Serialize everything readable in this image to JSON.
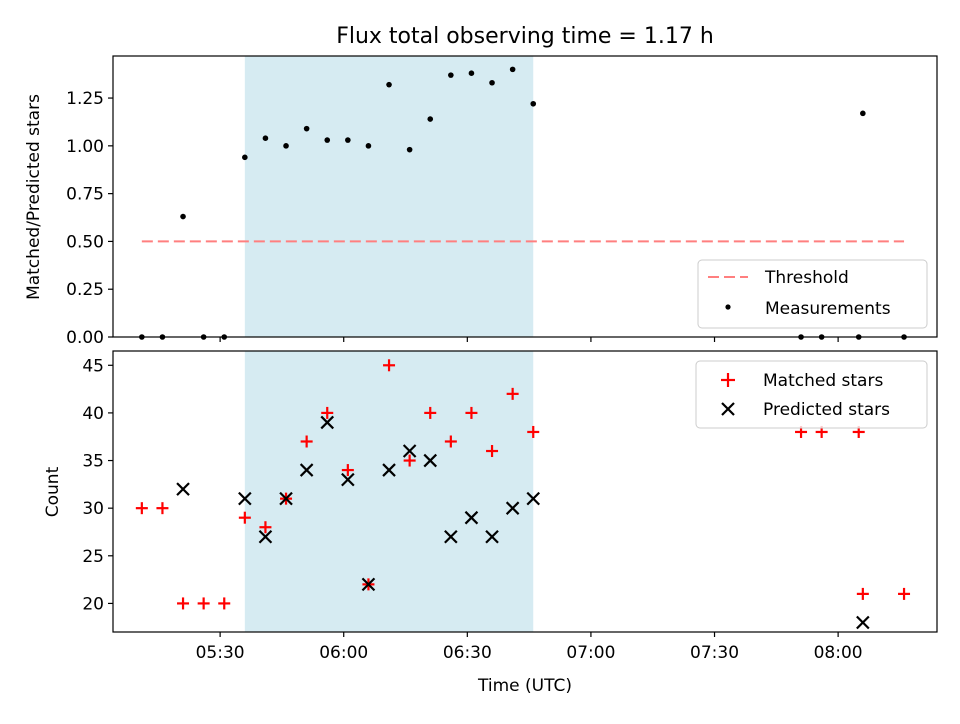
{
  "title": "Flux total observing time = 1.17 h",
  "chart_data": [
    {
      "type": "scatter",
      "ylabel": "Matched/Predicted stars",
      "xlabel": "",
      "xlim": [
        "05:04",
        "08:24"
      ],
      "ylim": [
        0,
        1.47
      ],
      "yticks": [
        0.0,
        0.25,
        0.5,
        0.75,
        1.0,
        1.25
      ],
      "ytick_labels": [
        "0.00",
        "0.25",
        "0.50",
        "0.75",
        "1.00",
        "1.25"
      ],
      "shaded_interval": [
        "05:36",
        "06:46"
      ],
      "threshold": {
        "name": "Threshold",
        "value": 0.5,
        "x_range": [
          "05:11",
          "08:16"
        ],
        "color": "#ff7f7f"
      },
      "legend": {
        "position": "lower right",
        "entries": [
          "Threshold",
          "Measurements"
        ]
      },
      "series": [
        {
          "name": "Measurements",
          "color": "#000000",
          "x": [
            "05:11",
            "05:16",
            "05:21",
            "05:26",
            "05:31",
            "05:36",
            "05:41",
            "05:46",
            "05:51",
            "05:56",
            "06:01",
            "06:06",
            "06:11",
            "06:16",
            "06:21",
            "06:26",
            "06:31",
            "06:36",
            "06:41",
            "06:46",
            "07:51",
            "07:56",
            "08:05",
            "08:06",
            "08:16"
          ],
          "y": [
            0.0,
            0.0,
            0.63,
            0.0,
            0.0,
            0.94,
            1.04,
            1.0,
            1.09,
            1.03,
            1.03,
            1.0,
            1.32,
            0.98,
            1.14,
            1.37,
            1.38,
            1.33,
            1.4,
            1.22,
            0.0,
            0.0,
            0.0,
            1.17,
            0.0
          ]
        }
      ]
    },
    {
      "type": "scatter",
      "xlabel": "Time (UTC)",
      "ylabel": "Count",
      "xlim": [
        "05:04",
        "08:24"
      ],
      "ylim": [
        17,
        46.5
      ],
      "yticks": [
        20,
        25,
        30,
        35,
        40,
        45
      ],
      "xticks": [
        "05:30",
        "06:00",
        "06:30",
        "07:00",
        "07:30",
        "08:00"
      ],
      "shaded_interval": [
        "05:36",
        "06:46"
      ],
      "legend": {
        "position": "upper right",
        "entries": [
          "Matched stars",
          "Predicted stars"
        ]
      },
      "series": [
        {
          "name": "Matched stars",
          "marker": "+",
          "color": "#ff0000",
          "x": [
            "05:11",
            "05:16",
            "05:21",
            "05:26",
            "05:31",
            "05:36",
            "05:41",
            "05:46",
            "05:51",
            "05:56",
            "06:01",
            "06:06",
            "06:11",
            "06:16",
            "06:21",
            "06:26",
            "06:31",
            "06:36",
            "06:41",
            "06:46",
            "07:51",
            "07:56",
            "08:05",
            "08:06",
            "08:16"
          ],
          "y": [
            30,
            30,
            20,
            20,
            20,
            29,
            28,
            31,
            37,
            40,
            34,
            22,
            45,
            35,
            40,
            37,
            40,
            36,
            42,
            38,
            38,
            38,
            38,
            21,
            21
          ]
        },
        {
          "name": "Predicted stars",
          "marker": "x",
          "color": "#000000",
          "x": [
            "05:21",
            "05:36",
            "05:41",
            "05:46",
            "05:51",
            "05:56",
            "06:01",
            "06:06",
            "06:11",
            "06:16",
            "06:21",
            "06:26",
            "06:31",
            "06:36",
            "06:41",
            "06:46",
            "08:06"
          ],
          "y": [
            32,
            31,
            27,
            31,
            34,
            39,
            33,
            22,
            34,
            36,
            35,
            27,
            29,
            27,
            30,
            31,
            18
          ]
        }
      ]
    }
  ]
}
